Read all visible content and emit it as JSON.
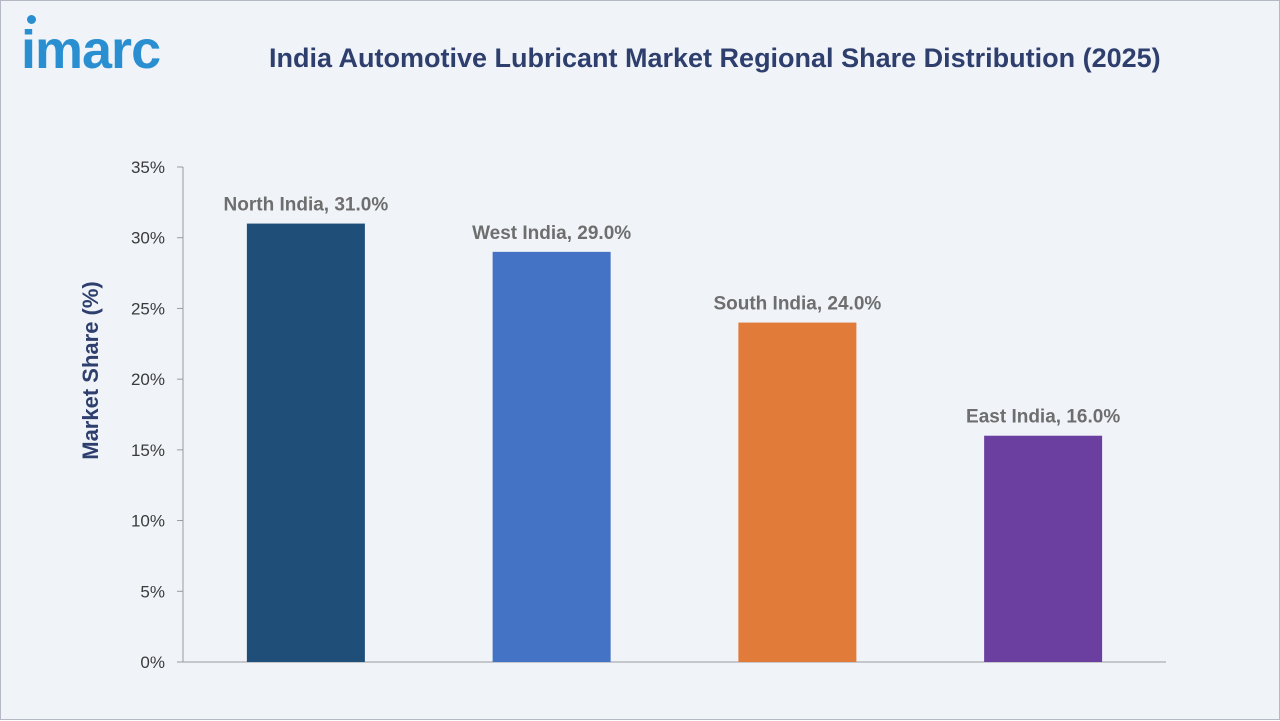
{
  "header": {
    "logo_text": "imarc",
    "title": "India Automotive Lubricant Market Regional Share Distribution (2025)"
  },
  "chart_data": {
    "type": "bar",
    "title": "India Automotive Lubricant Market Regional Share Distribution (2025)",
    "xlabel": "",
    "ylabel": "Market Share (%)",
    "ylim": [
      0,
      35
    ],
    "yticks": [
      0,
      5,
      10,
      15,
      20,
      25,
      30,
      35
    ],
    "ytick_labels": [
      "0%",
      "5%",
      "10%",
      "15%",
      "20%",
      "25%",
      "30%",
      "35%"
    ],
    "categories": [
      "North India",
      "West India",
      "South India",
      "East India"
    ],
    "values": [
      31.0,
      29.0,
      24.0,
      16.0
    ],
    "data_labels": [
      "North India, 31.0%",
      "West India, 29.0%",
      "South India, 24.0%",
      "East India, 16.0%"
    ],
    "colors": [
      "#1f4e79",
      "#4472c4",
      "#e07b39",
      "#6b3fa0"
    ],
    "grid": false,
    "legend": "none"
  }
}
